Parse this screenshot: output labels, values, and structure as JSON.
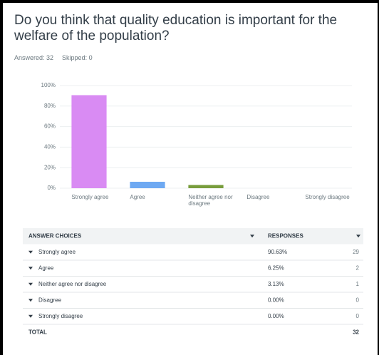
{
  "question": "Do you think that quality education is important for the welfare of the population?",
  "answered": "Answered: 32",
  "skipped": "Skipped: 0",
  "chart_data": {
    "type": "bar",
    "categories": [
      "Strongly agree",
      "Agree",
      "Neither agree nor disagree",
      "Disagree",
      "Strongly disagree"
    ],
    "values": [
      90.63,
      6.25,
      3.13,
      0,
      0
    ],
    "colors": [
      "#d98bf3",
      "#6ea9f2",
      "#789d3c",
      "#e8a23a",
      "#5fc3c9"
    ],
    "ylim": [
      0,
      100
    ],
    "yticks": [
      {
        "value": 0,
        "label": "0%"
      },
      {
        "value": 20,
        "label": "20%"
      },
      {
        "value": 40,
        "label": "40%"
      },
      {
        "value": 60,
        "label": "60%"
      },
      {
        "value": 80,
        "label": "80%"
      },
      {
        "value": 100,
        "label": "100%"
      }
    ],
    "grid": true
  },
  "table": {
    "headers": [
      "ANSWER CHOICES",
      "RESPONSES"
    ],
    "rows": [
      [
        "Strongly agree",
        "90.63%",
        "29"
      ],
      [
        "Agree",
        "6.25%",
        "2"
      ],
      [
        "Neither agree nor disagree",
        "3.13%",
        "1"
      ],
      [
        "Disagree",
        "0.00%",
        "0"
      ],
      [
        "Strongly disagree",
        "0.00%",
        "0"
      ]
    ],
    "total": [
      "TOTAL",
      "32"
    ]
  }
}
